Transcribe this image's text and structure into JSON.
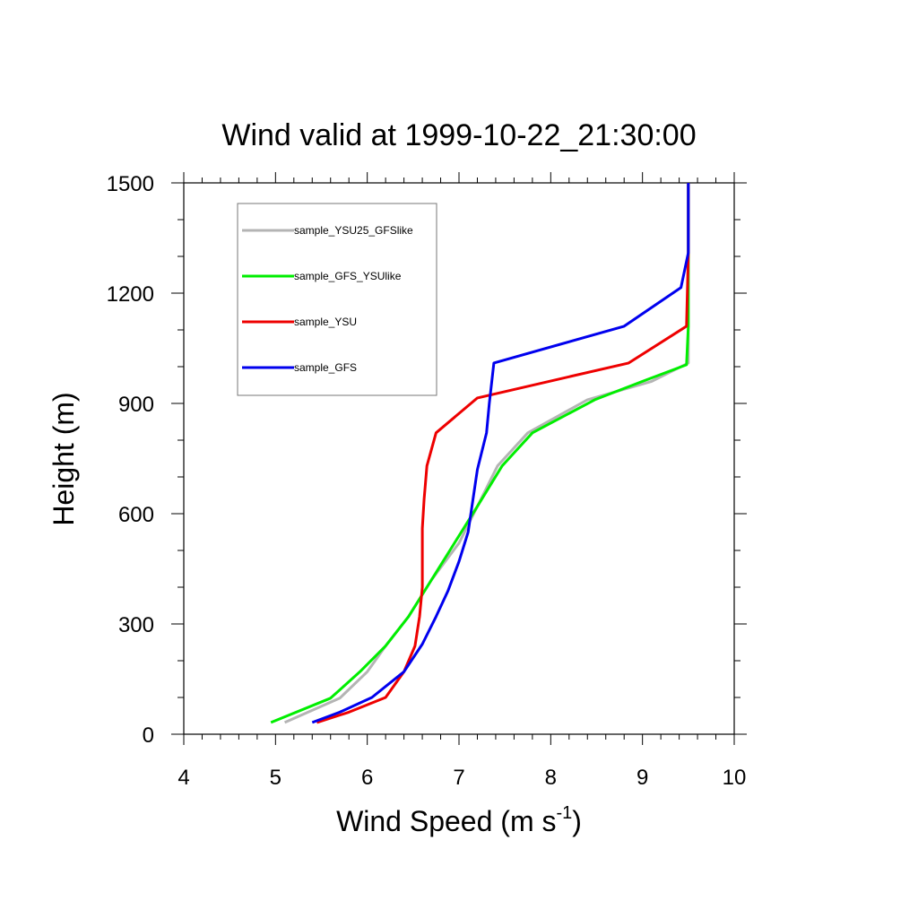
{
  "chart_data": {
    "type": "line",
    "title": "Wind valid at 1999-10-22_21:30:00",
    "xlabel": "Wind Speed (m s",
    "xlabel_superscript": "-1",
    "xlabel_suffix": ")",
    "ylabel": "Height (m)",
    "xlim": [
      4,
      10
    ],
    "ylim": [
      0,
      1500
    ],
    "xticks": [
      "4",
      "5",
      "6",
      "7",
      "8",
      "9",
      "10"
    ],
    "yticks": [
      "0",
      "300",
      "600",
      "900",
      "1200",
      "1500"
    ],
    "legend_placement": "top-left",
    "series": [
      {
        "name": "sample_YSU25_GFSlike",
        "color": "#b4b4b4",
        "x": [
          5.1,
          5.7,
          6.0,
          6.2,
          6.45,
          6.7,
          7.0,
          7.2,
          7.42,
          7.75,
          8.4,
          9.1,
          9.5,
          9.5,
          9.5,
          9.5
        ],
        "y": [
          32,
          98,
          170,
          240,
          320,
          420,
          520,
          620,
          730,
          820,
          910,
          960,
          1010,
          1110,
          1310,
          1500
        ]
      },
      {
        "name": "sample_GFS_YSUlike",
        "color": "#00ee00",
        "x": [
          4.95,
          5.6,
          5.92,
          6.2,
          6.45,
          6.65,
          6.9,
          7.2,
          7.47,
          7.8,
          8.48,
          9.0,
          9.48,
          9.5,
          9.5,
          9.5
        ],
        "y": [
          32,
          98,
          170,
          240,
          320,
          400,
          500,
          620,
          730,
          820,
          910,
          960,
          1005,
          1110,
          1310,
          1500
        ]
      },
      {
        "name": "sample_YSU",
        "color": "#ee0000",
        "x": [
          5.45,
          5.8,
          6.2,
          6.4,
          6.52,
          6.57,
          6.6,
          6.6,
          6.62,
          6.65,
          6.75,
          7.2,
          8.85,
          9.48,
          9.5,
          9.5
        ],
        "y": [
          32,
          60,
          100,
          170,
          240,
          320,
          400,
          560,
          640,
          730,
          820,
          915,
          1010,
          1110,
          1310,
          1500
        ]
      },
      {
        "name": "sample_GFS",
        "color": "#0000ee",
        "x": [
          5.4,
          5.7,
          6.05,
          6.4,
          6.6,
          6.75,
          6.88,
          7.0,
          7.1,
          7.2,
          7.3,
          7.33,
          7.38,
          8.8,
          9.42,
          9.5,
          9.5
        ],
        "y": [
          32,
          60,
          100,
          170,
          245,
          320,
          390,
          470,
          550,
          720,
          820,
          900,
          1010,
          1110,
          1215,
          1310,
          1500
        ]
      }
    ]
  }
}
